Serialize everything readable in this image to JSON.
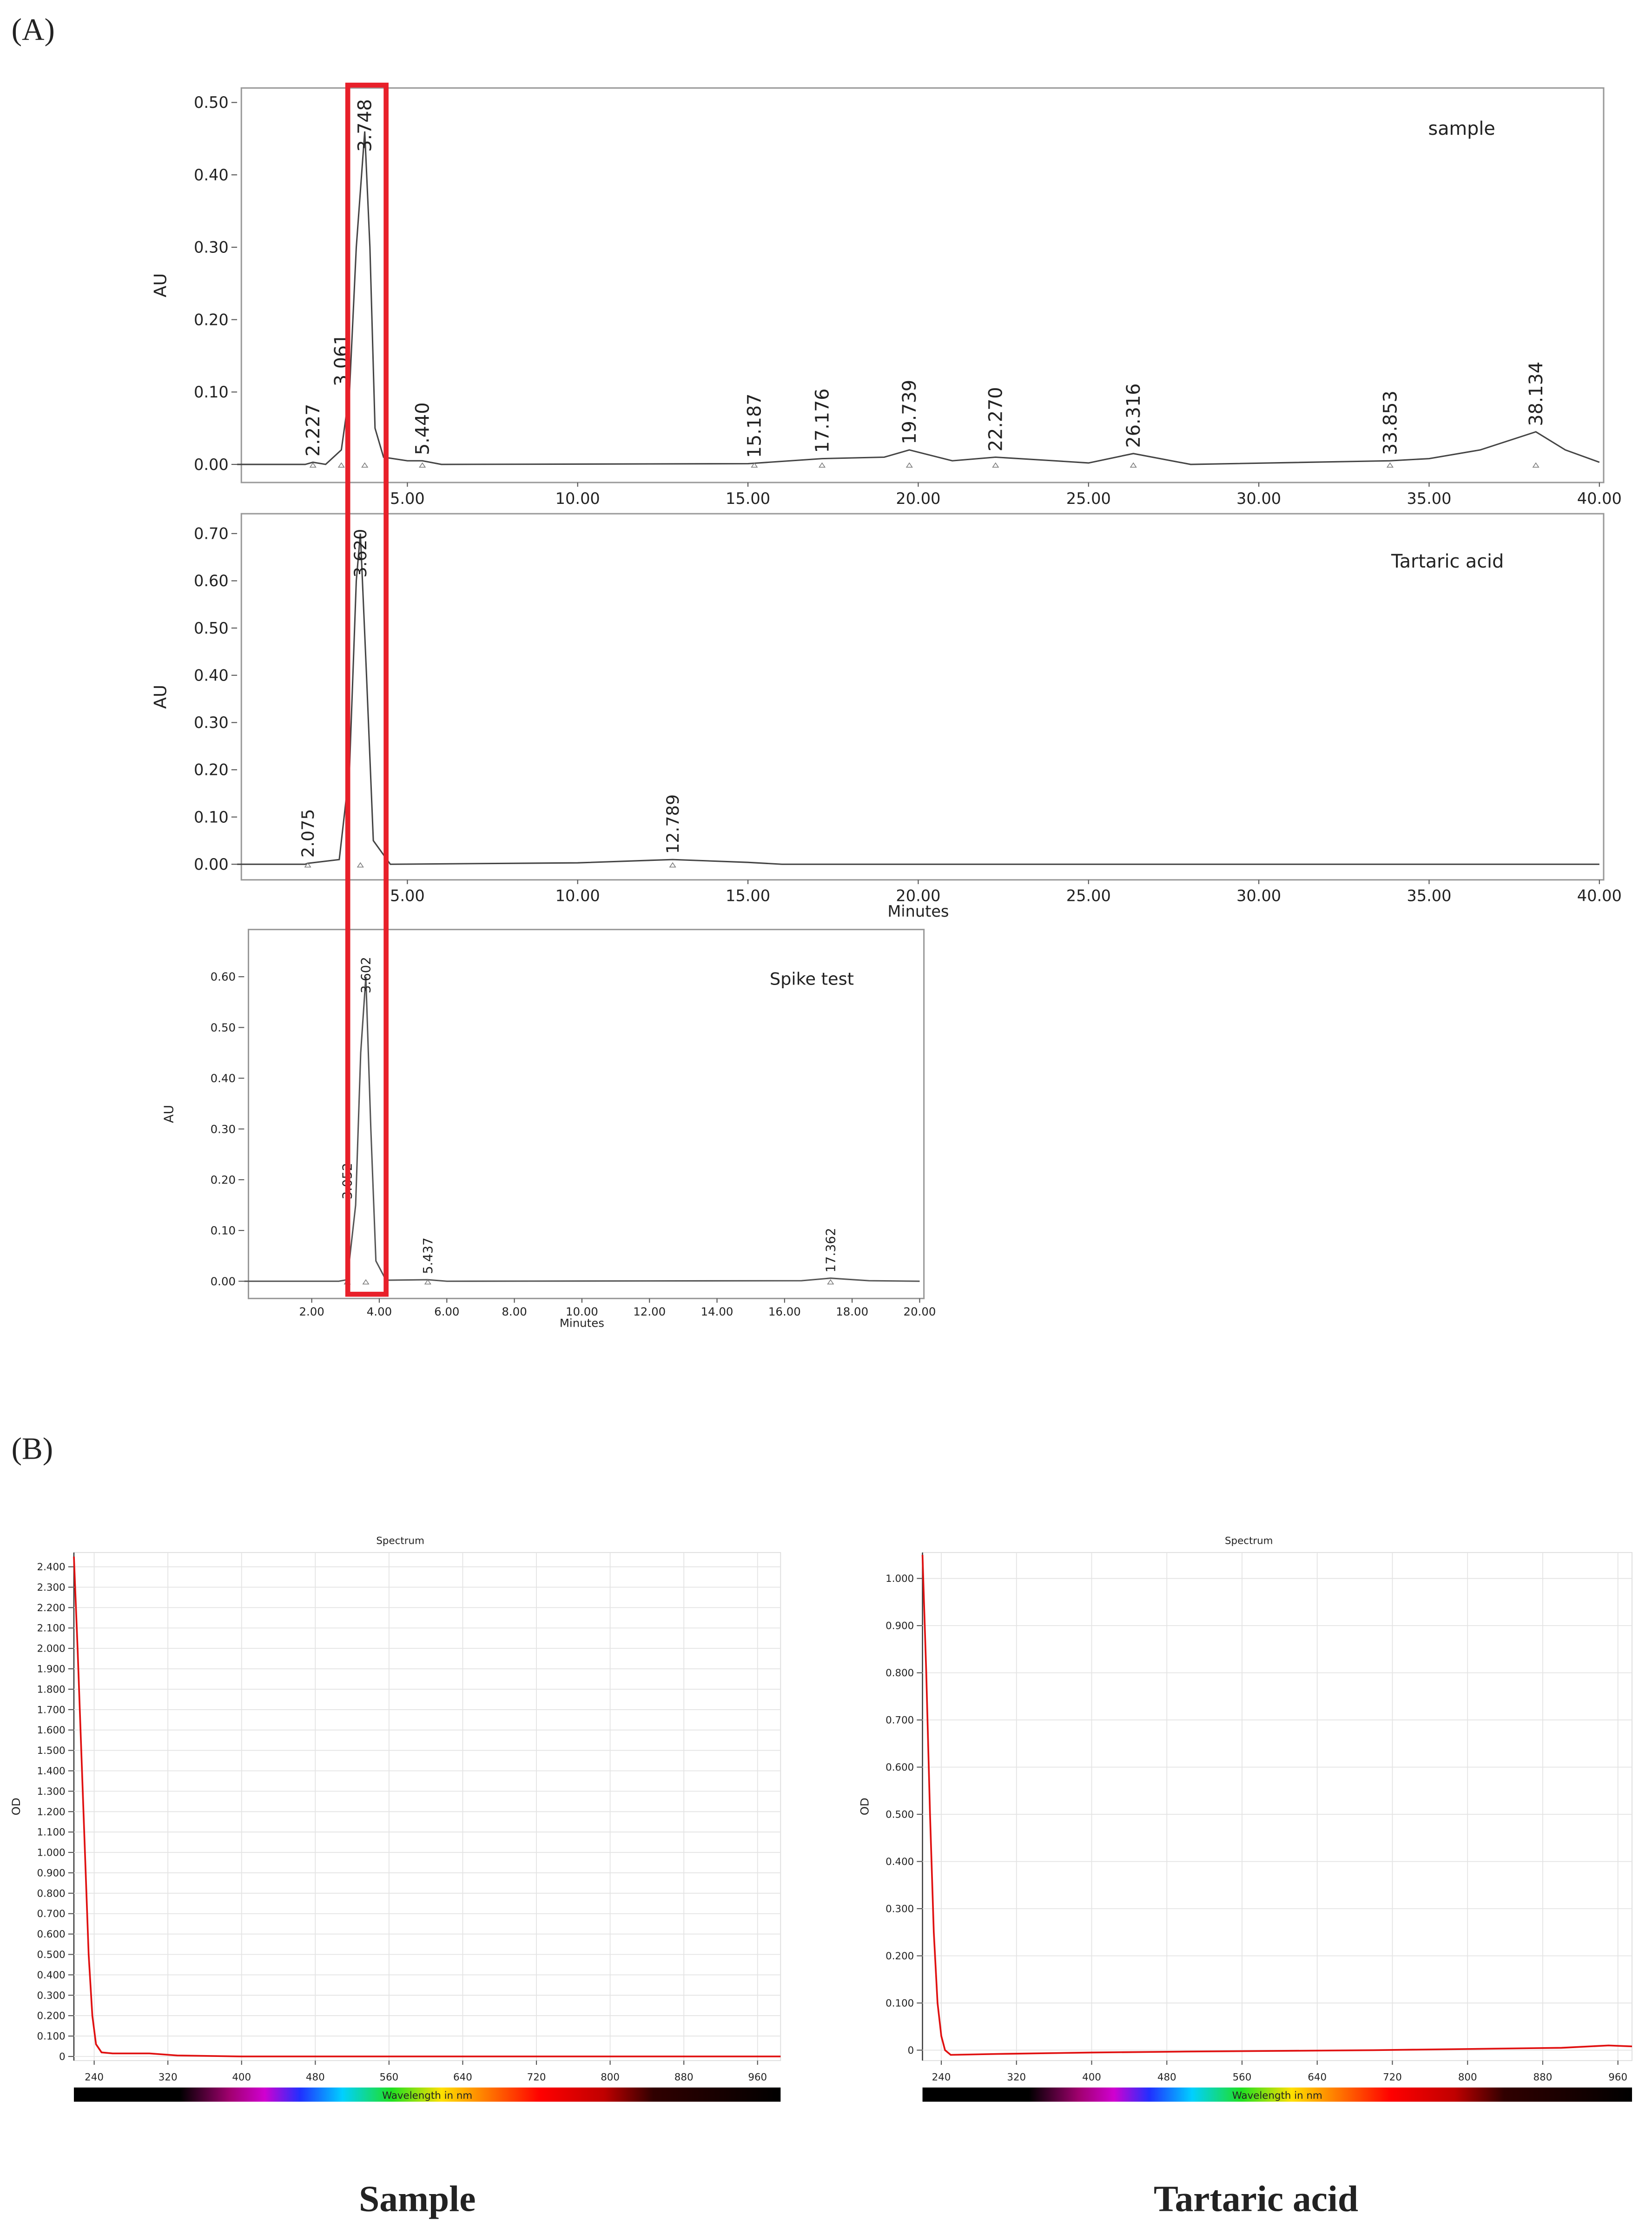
{
  "panel_labels": [
    "(A)",
    "(B)"
  ],
  "chart_data": [
    {
      "type": "line",
      "title": "sample",
      "ylabel": "AU",
      "xlim": [
        0,
        40
      ],
      "ylim": [
        -0.025,
        0.52
      ],
      "xticks": [
        {
          "value": 5,
          "label": "5.00"
        },
        {
          "value": 10,
          "label": "10.00"
        },
        {
          "value": 15,
          "label": "15.00"
        },
        {
          "value": 20,
          "label": "20.00"
        },
        {
          "value": 25,
          "label": "25.00"
        },
        {
          "value": 30,
          "label": "30.00"
        },
        {
          "value": 35,
          "label": "35.00"
        },
        {
          "value": 40,
          "label": "40.00"
        }
      ],
      "yticks": [
        {
          "value": 0,
          "label": "0.00"
        },
        {
          "value": 0.1,
          "label": "0.10"
        },
        {
          "value": 0.2,
          "label": "0.20"
        },
        {
          "value": 0.3,
          "label": "0.30"
        },
        {
          "value": 0.4,
          "label": "0.40"
        },
        {
          "value": 0.5,
          "label": "0.50"
        }
      ],
      "grid": false,
      "color": "#444444",
      "peak_labels": [
        "2.227",
        "3.061",
        "3.748",
        "5.440",
        "15.187",
        "17.176",
        "19.739",
        "22.270",
        "26.316",
        "33.853",
        "38.134"
      ],
      "x": [
        0,
        2,
        2.227,
        2.6,
        3.061,
        3.3,
        3.5,
        3.748,
        3.9,
        4.05,
        4.3,
        5,
        5.44,
        6,
        15,
        17.176,
        19,
        19.739,
        21,
        22.27,
        24,
        25,
        26.316,
        28,
        33.853,
        35,
        36.5,
        38.134,
        39,
        40
      ],
      "values": [
        0,
        0,
        0.003,
        0,
        0.02,
        0.1,
        0.3,
        0.46,
        0.3,
        0.05,
        0.01,
        0.005,
        0.005,
        0,
        0.001,
        0.008,
        0.01,
        0.02,
        0.005,
        0.01,
        0.005,
        0.002,
        0.015,
        0,
        0.005,
        0.008,
        0.02,
        0.045,
        0.02,
        0.003
      ]
    },
    {
      "type": "line",
      "title": "Tartaric acid",
      "ylabel": "AU",
      "xlabel": "Minutes",
      "xlim": [
        0,
        40
      ],
      "ylim": [
        -0.033,
        0.742
      ],
      "xticks": [
        {
          "value": 5,
          "label": "5.00"
        },
        {
          "value": 10,
          "label": "10.00"
        },
        {
          "value": 15,
          "label": "15.00"
        },
        {
          "value": 20,
          "label": "20.00"
        },
        {
          "value": 25,
          "label": "25.00"
        },
        {
          "value": 30,
          "label": "30.00"
        },
        {
          "value": 35,
          "label": "35.00"
        },
        {
          "value": 40,
          "label": "40.00"
        }
      ],
      "yticks": [
        {
          "value": 0,
          "label": "0.00"
        },
        {
          "value": 0.1,
          "label": "0.10"
        },
        {
          "value": 0.2,
          "label": "0.20"
        },
        {
          "value": 0.3,
          "label": "0.30"
        },
        {
          "value": 0.4,
          "label": "0.40"
        },
        {
          "value": 0.5,
          "label": "0.50"
        },
        {
          "value": 0.6,
          "label": "0.60"
        },
        {
          "value": 0.7,
          "label": "0.70"
        }
      ],
      "grid": false,
      "color": "#444444",
      "peak_labels": [
        "2.075",
        "3.620",
        "12.789"
      ],
      "x": [
        0,
        2,
        2.075,
        3,
        3.3,
        3.5,
        3.62,
        3.8,
        4,
        4.5,
        10,
        12.789,
        15,
        16,
        40
      ],
      "values": [
        0,
        0,
        0.002,
        0.01,
        0.2,
        0.6,
        0.7,
        0.4,
        0.05,
        0,
        0.003,
        0.01,
        0.004,
        0,
        0
      ]
    },
    {
      "type": "line",
      "title": "Spike test",
      "ylabel": "AU",
      "xlabel": "Minutes",
      "xlim": [
        0,
        20
      ],
      "ylim": [
        -0.034,
        0.693
      ],
      "xticks": [
        {
          "value": 2,
          "label": "2.00"
        },
        {
          "value": 4,
          "label": "4.00"
        },
        {
          "value": 6,
          "label": "6.00"
        },
        {
          "value": 8,
          "label": "8.00"
        },
        {
          "value": 10,
          "label": "10.00"
        },
        {
          "value": 12,
          "label": "12.00"
        },
        {
          "value": 14,
          "label": "14.00"
        },
        {
          "value": 16,
          "label": "16.00"
        },
        {
          "value": 18,
          "label": "18.00"
        },
        {
          "value": 20,
          "label": "20.00"
        }
      ],
      "yticks": [
        {
          "value": 0,
          "label": "0.00"
        },
        {
          "value": 0.1,
          "label": "0.10"
        },
        {
          "value": 0.2,
          "label": "0.20"
        },
        {
          "value": 0.3,
          "label": "0.30"
        },
        {
          "value": 0.4,
          "label": "0.40"
        },
        {
          "value": 0.5,
          "label": "0.50"
        },
        {
          "value": 0.6,
          "label": "0.60"
        }
      ],
      "grid": false,
      "color": "#555555",
      "peak_labels": [
        "3.052",
        "3.602",
        "5.437",
        "17.362"
      ],
      "x": [
        0,
        2.8,
        3.052,
        3.3,
        3.45,
        3.602,
        3.75,
        3.9,
        4.2,
        5.437,
        6,
        16.5,
        17.362,
        18.5,
        20
      ],
      "values": [
        0,
        0,
        0.003,
        0.15,
        0.45,
        0.6,
        0.3,
        0.04,
        0.002,
        0.003,
        0,
        0.001,
        0.006,
        0.001,
        0
      ]
    },
    {
      "type": "line",
      "title": "Spectrum",
      "ylabel": "OD",
      "xlabel": "Wavelength in nm",
      "caption": "Sample",
      "xlim": [
        218,
        985
      ],
      "ylim": [
        -0.02,
        2.47
      ],
      "xticks": [
        240,
        320,
        400,
        480,
        560,
        640,
        720,
        800,
        880,
        960
      ],
      "yticks": [
        0,
        {
          "value": 0.1,
          "label": "0.100"
        },
        {
          "value": 0.2,
          "label": "0.200"
        },
        {
          "value": 0.3,
          "label": "0.300"
        },
        {
          "value": 0.4,
          "label": "0.400"
        },
        {
          "value": 0.5,
          "label": "0.500"
        },
        {
          "value": 0.6,
          "label": "0.600"
        },
        {
          "value": 0.7,
          "label": "0.700"
        },
        {
          "value": 0.8,
          "label": "0.800"
        },
        {
          "value": 0.9,
          "label": "0.900"
        },
        {
          "value": 1.0,
          "label": "1.000"
        },
        {
          "value": 1.1,
          "label": "1.100"
        },
        {
          "value": 1.2,
          "label": "1.200"
        },
        {
          "value": 1.3,
          "label": "1.300"
        },
        {
          "value": 1.4,
          "label": "1.400"
        },
        {
          "value": 1.5,
          "label": "1.500"
        },
        {
          "value": 1.6,
          "label": "1.600"
        },
        {
          "value": 1.7,
          "label": "1.700"
        },
        {
          "value": 1.8,
          "label": "1.800"
        },
        {
          "value": 1.9,
          "label": "1.900"
        },
        {
          "value": 2.0,
          "label": "2.000"
        },
        {
          "value": 2.1,
          "label": "2.100"
        },
        {
          "value": 2.2,
          "label": "2.200"
        },
        {
          "value": 2.3,
          "label": "2.300"
        },
        {
          "value": 2.4,
          "label": "2.400"
        }
      ],
      "grid": true,
      "color": "#e01010",
      "x": [
        218,
        222,
        226,
        230,
        234,
        238,
        242,
        248,
        260,
        300,
        330,
        400,
        700,
        985
      ],
      "values": [
        2.45,
        2.0,
        1.5,
        1.0,
        0.5,
        0.2,
        0.06,
        0.02,
        0.015,
        0.015,
        0.005,
        0,
        0,
        0
      ]
    },
    {
      "type": "line",
      "title": "Spectrum",
      "ylabel": "OD",
      "xlabel": "Wavelength in nm",
      "caption": "Tartaric acid",
      "xlim": [
        220,
        975
      ],
      "ylim": [
        -0.022,
        1.055
      ],
      "xticks": [
        240,
        320,
        400,
        480,
        560,
        640,
        720,
        800,
        880,
        960
      ],
      "yticks": [
        0,
        {
          "value": 0.1,
          "label": "0.100"
        },
        {
          "value": 0.2,
          "label": "0.200"
        },
        {
          "value": 0.3,
          "label": "0.300"
        },
        {
          "value": 0.4,
          "label": "0.400"
        },
        {
          "value": 0.5,
          "label": "0.500"
        },
        {
          "value": 0.6,
          "label": "0.600"
        },
        {
          "value": 0.7,
          "label": "0.700"
        },
        {
          "value": 0.8,
          "label": "0.800"
        },
        {
          "value": 0.9,
          "label": "0.900"
        },
        {
          "value": 1.0,
          "label": "1.000"
        }
      ],
      "grid": true,
      "color": "#e01010",
      "x": [
        220,
        224,
        228,
        232,
        236,
        240,
        244,
        250,
        300,
        400,
        500,
        700,
        900,
        950,
        975
      ],
      "values": [
        1.05,
        0.8,
        0.5,
        0.25,
        0.1,
        0.03,
        0,
        -0.01,
        -0.008,
        -0.005,
        -0.003,
        0,
        0.005,
        0.01,
        0.008
      ]
    }
  ]
}
